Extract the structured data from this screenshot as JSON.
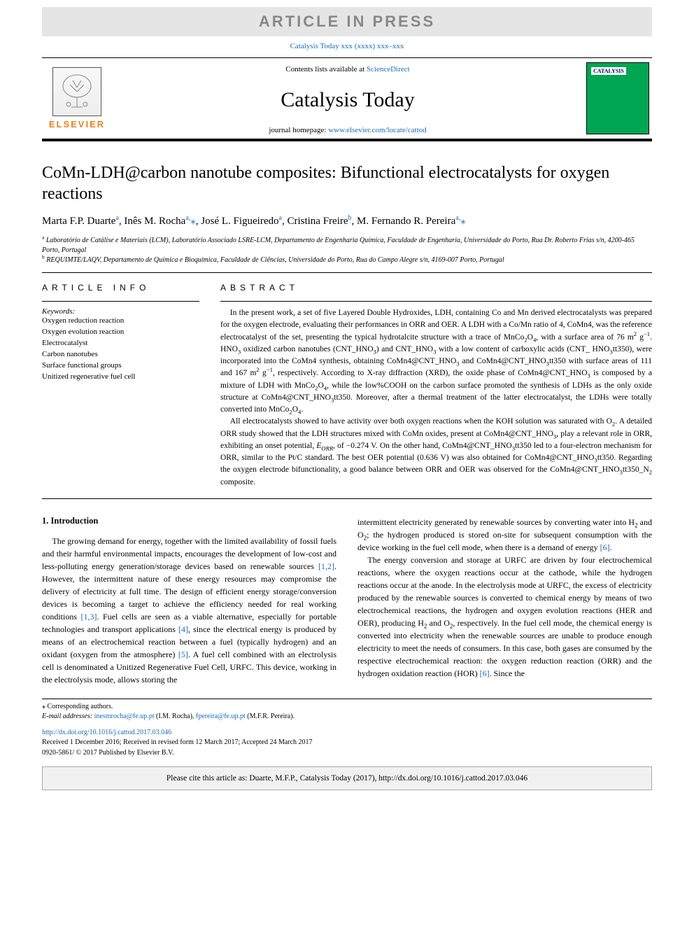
{
  "banner": {
    "text": "ARTICLE IN PRESS"
  },
  "journalRef": "Catalysis Today xxx (xxxx) xxx–xxx",
  "header": {
    "contentsPrefix": "Contents lists available at ",
    "contentsLink": "ScienceDirect",
    "journalTitle": "Catalysis Today",
    "homepagePrefix": "journal homepage: ",
    "homepageLink": "www.elsevier.com/locate/cattod",
    "publisherName": "ELSEVIER",
    "coverLabel": "CATALYSIS"
  },
  "article": {
    "title": "CoMn-LDH@carbon nanotube composites: Bifunctional electrocatalysts for oxygen reactions",
    "authorsHtml": "Marta F.P. Duarte<sup>a</sup>, Inês M. Rocha<sup>a,</sup><span class='star'>⁎</span>, José L. Figueiredo<sup>a</sup>, Cristina Freire<sup>b</sup>, M.&nbsp;Fernando R.&nbsp;Pereira<sup>a,</sup><span class='star'>⁎</span>",
    "affiliations": {
      "a": "Laboratório de Catálise e Materiais (LCM), Laboratório Associado LSRE-LCM, Departamento de Engenharia Química, Faculdade de Engenharia, Universidade do Porto, Rua Dr. Roberto Frias s/n, 4200-465 Porto, Portugal",
      "b": "REQUIMTE/LAQV, Departamento de Química e Bioquímica, Faculdade de Ciências, Universidade do Porto, Rua do Campo Alegre s/n, 4169-007 Porto, Portugal"
    }
  },
  "sections": {
    "infoHeading": "ARTICLE INFO",
    "abstractHeading": "ABSTRACT",
    "keywordsLabel": "Keywords:",
    "keywords": [
      "Oxygen reduction reaction",
      "Oxygen evolution reaction",
      "Electrocatalyst",
      "Carbon nanotubes",
      "Surface functional groups",
      "Unitized regenerative fuel cell"
    ],
    "abstract": {
      "p1": "In the present work, a set of five Layered Double Hydroxides, LDH, containing Co and Mn derived electrocatalysts was prepared for the oxygen electrode, evaluating their performances in ORR and OER. A LDH with a Co/Mn ratio of 4, CoMn4, was the reference electrocatalyst of the set, presenting the typical hydrotalcite structure with a trace of MnCo₂O₄, with a surface area of 76 m² g⁻¹. HNO₃ oxidized carbon nanotubes (CNT_HNO₃) and CNT_HNO₃ with a low content of carboxylic acids (CNT_ HNO₃tt350), were incorporated into the CoMn4 synthesis, obtaining CoMn4@CNT_HNO₃ and CoMn4@CNT_HNO₃tt350 with surface areas of 111 and 167 m² g⁻¹, respectively. According to X-ray diffraction (XRD), the oxide phase of CoMn4@CNT_HNO₃ is composed by a mixture of LDH with MnCo₂O₄, while the low%COOH on the carbon surface promoted the synthesis of LDHs as the only oxide structure at CoMn4@CNT_HNO₃tt350. Moreover, after a thermal treatment of the latter electrocatalyst, the LDHs were totally converted into MnCo₂O₄.",
      "p2": "All electrocatalysts showed to have activity over both oxygen reactions when the KOH solution was saturated with O₂. A detailed ORR study showed that the LDH structures mixed with CoMn oxides, present at CoMn4@CNT_HNO₃, play a relevant role in ORR, exhibiting an onset potential, E_ORR, of −0.274 V. On the other hand, CoMn4@CNT_HNO₃tt350 led to a four-electron mechanism for ORR, similar to the Pt/C standard. The best OER potential (0.636 V) was also obtained for CoMn4@CNT_HNO₃tt350. Regarding the oxygen electrode bifunctionality, a good balance between ORR and OER was observed for the CoMn4@CNT_HNO₃tt350_N₂ composite."
    },
    "introHeading": "1. Introduction",
    "introLeft": "The growing demand for energy, together with the limited availability of fossil fuels and their harmful environmental impacts, encourages the development of low-cost and less-polluting energy generation/storage devices based on renewable sources [1,2]. However, the intermittent nature of these energy resources may compromise the delivery of electricity at full time. The design of efficient energy storage/conversion devices is becoming a target to achieve the efficiency needed for real working conditions [1,3]. Fuel cells are seen as a viable alternative, especially for portable technologies and transport applications [4], since the electrical energy is produced by means of an electrochemical reaction between a fuel (typically hydrogen) and an oxidant (oxygen from the atmosphere) [5]. A fuel cell combined with an electrolysis cell is denominated a Unitized Regenerative Fuel Cell, URFC. This device, working in the electrolysis mode, allows storing the",
    "introRightP1": "intermittent electricity generated by renewable sources by converting water into H₂ and O₂; the hydrogen produced is stored on-site for subsequent consumption with the device working in the fuel cell mode, when there is a demand of energy [6].",
    "introRightP2": "The energy conversion and storage at URFC are driven by four electrochemical reactions, where the oxygen reactions occur at the cathode, while the hydrogen reactions occur at the anode. In the electrolysis mode at URFC, the excess of electricity produced by the renewable sources is converted to chemical energy by means of two electrochemical reactions, the hydrogen and oxygen evolution reactions (HER and OER), producing H₂ and O₂, respectively. In the fuel cell mode, the chemical energy is converted into electricity when the renewable sources are unable to produce enough electricity to meet the needs of consumers. In this case, both gases are consumed by the respective electrochemical reaction: the oxygen reduction reaction (ORR) and the hydrogen oxidation reaction (HOR) [6]. Since the"
  },
  "footer": {
    "corresponding": "⁎ Corresponding authors.",
    "emailsLabel": "E-mail addresses: ",
    "email1": "inesmrocha@fe.up.pt",
    "email1Who": " (I.M. Rocha), ",
    "email2": "fpereira@fe.up.pt",
    "email2Who": " (M.F.R. Pereira).",
    "doi": "http://dx.doi.org/10.1016/j.cattod.2017.03.046",
    "received": "Received 1 December 2016; Received in revised form 12 March 2017; Accepted 24 March 2017",
    "issn": "0920-5861/ © 2017 Published by Elsevier B.V."
  },
  "citeBox": "Please cite this article as: Duarte, M.F.P., Catalysis Today (2017), http://dx.doi.org/10.1016/j.cattod.2017.03.046",
  "styling": {
    "linkColor": "#1a6bb5",
    "bannerBg": "#e5e5e5",
    "bannerFg": "#888888",
    "elsevierOrange": "#ee7f1a",
    "coverGreen": "#00a651",
    "bodyFontSize": 13,
    "titleFontSize": 24,
    "journalTitleFontSize": 30,
    "abstractFontSize": 11.5,
    "introFontSize": 12,
    "footerFontSize": 10,
    "pageWidth": 992,
    "pageHeight": 1323
  }
}
